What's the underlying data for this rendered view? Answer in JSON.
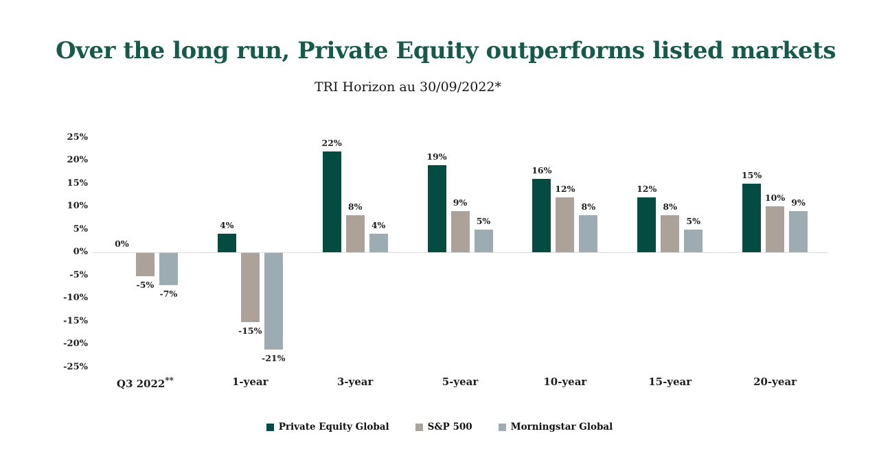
{
  "chart_data": {
    "type": "bar",
    "title": "Over the long run, Private Equity outperforms listed markets",
    "subtitle": "TRI Horizon au 30/09/2022*",
    "categories": [
      "Q3 2022**",
      "1-year",
      "3-year",
      "5-year",
      "10-year",
      "15-year",
      "20-year"
    ],
    "series": [
      {
        "name": "Private Equity Global",
        "color": "#044B42",
        "values": [
          0,
          4,
          22,
          19,
          16,
          12,
          15
        ]
      },
      {
        "name": "S&P 500",
        "color": "#ADA29A",
        "values": [
          -5,
          -15,
          8,
          9,
          12,
          8,
          10
        ]
      },
      {
        "name": "Morningstar Global",
        "color": "#9DACB3",
        "values": [
          -7,
          -21,
          4,
          5,
          8,
          5,
          9
        ]
      }
    ],
    "value_label_suffix": "%",
    "ylim": [
      -25,
      25
    ],
    "ytick_step": 5,
    "yticks": [
      "25%",
      "20%",
      "15%",
      "10%",
      "5%",
      "0%",
      "-5%",
      "-10%",
      "-15%",
      "-20%",
      "-25%"
    ],
    "grid": false,
    "legend_position": "bottom"
  },
  "colors": {
    "title": "#175A4C",
    "axis_line": "#D9D9D9",
    "text": "#1E1E1E",
    "background": "#FFFFFF"
  }
}
